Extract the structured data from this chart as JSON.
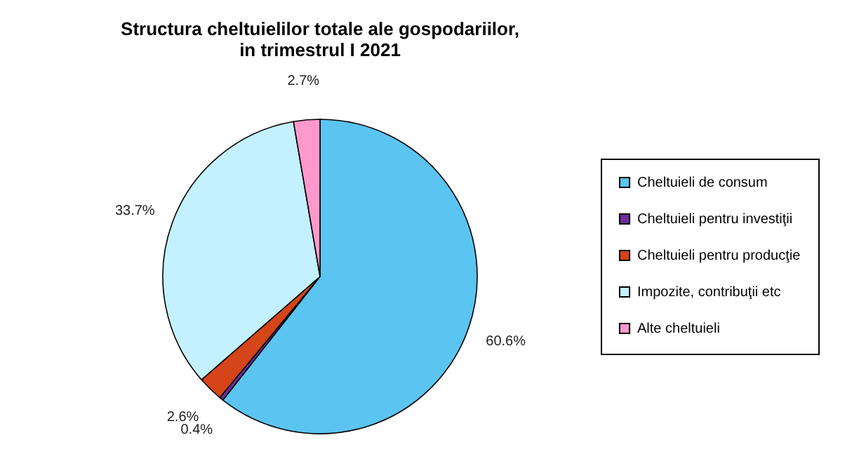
{
  "chart_data": {
    "type": "pie",
    "title": "Structura cheltuielilor totale ale gospodariilor,\nin trimestrul I 2021",
    "categories": [
      "Cheltuieli de consum",
      "Cheltuieli pentru investiţii",
      "Cheltuieli pentru producţie",
      "Impozite, contribuţii etc",
      "Alte cheltuieli"
    ],
    "values": [
      60.6,
      0.4,
      2.6,
      33.7,
      2.7
    ],
    "value_labels": [
      "60.6%",
      "0.4%",
      "2.6%",
      "33.7%",
      "2.7%"
    ],
    "colors": [
      "#5bc4f1",
      "#6b2d9a",
      "#d6441a",
      "#c4f1ff",
      "#ff99cc"
    ],
    "legend": "right"
  }
}
